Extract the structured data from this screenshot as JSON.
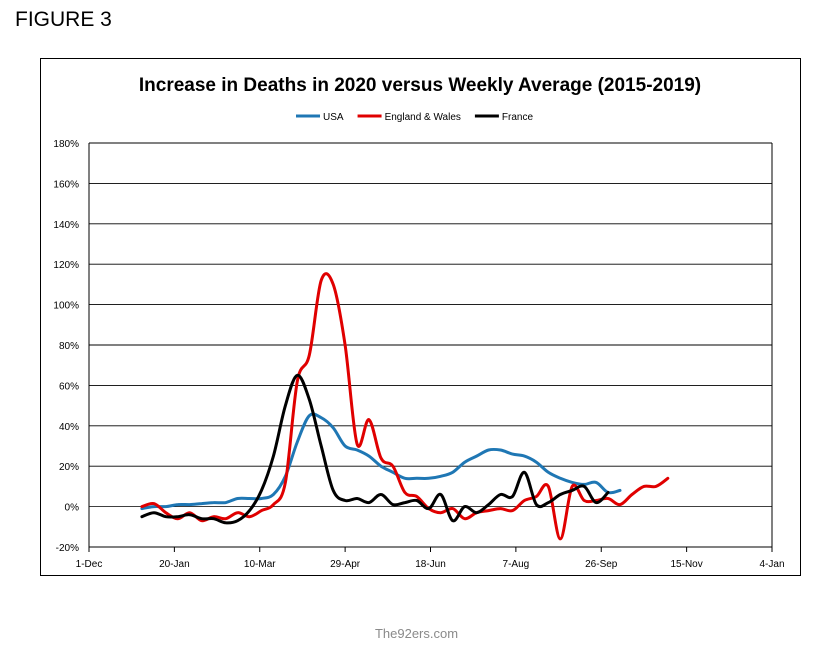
{
  "figure_label": "FIGURE 3",
  "footer": "The92ers.com",
  "chart_data": {
    "type": "line",
    "title": "Increase in Deaths in 2020 versus Weekly Average (2015-2019)",
    "xlabel": "",
    "ylabel": "",
    "legend_position": "top-center",
    "grid": true,
    "x_ticks": [
      "1-Dec",
      "20-Jan",
      "10-Mar",
      "29-Apr",
      "18-Jun",
      "7-Aug",
      "26-Sep",
      "15-Nov",
      "4-Jan"
    ],
    "xlim": [
      "2019-12-01",
      "2021-01-04"
    ],
    "y_ticks": [
      "-20%",
      "0%",
      "20%",
      "40%",
      "60%",
      "80%",
      "100%",
      "120%",
      "140%",
      "160%",
      "180%"
    ],
    "ylim": [
      -20,
      180
    ],
    "series": [
      {
        "name": "USA",
        "color": "#1f77b4",
        "points": [
          [
            "2020-01-01",
            -1
          ],
          [
            "2020-01-08",
            0
          ],
          [
            "2020-01-15",
            0
          ],
          [
            "2020-01-22",
            1
          ],
          [
            "2020-01-29",
            1
          ],
          [
            "2020-02-05",
            1.5
          ],
          [
            "2020-02-12",
            2
          ],
          [
            "2020-02-19",
            2
          ],
          [
            "2020-02-26",
            4
          ],
          [
            "2020-03-04",
            4
          ],
          [
            "2020-03-11",
            4
          ],
          [
            "2020-03-18",
            6
          ],
          [
            "2020-03-25",
            15
          ],
          [
            "2020-04-01",
            32
          ],
          [
            "2020-04-08",
            45
          ],
          [
            "2020-04-15",
            44
          ],
          [
            "2020-04-22",
            39
          ],
          [
            "2020-04-29",
            30
          ],
          [
            "2020-05-06",
            28
          ],
          [
            "2020-05-13",
            25
          ],
          [
            "2020-05-20",
            20
          ],
          [
            "2020-05-27",
            17
          ],
          [
            "2020-06-03",
            14
          ],
          [
            "2020-06-10",
            14
          ],
          [
            "2020-06-17",
            14
          ],
          [
            "2020-06-24",
            15
          ],
          [
            "2020-07-01",
            17
          ],
          [
            "2020-07-08",
            22
          ],
          [
            "2020-07-15",
            25
          ],
          [
            "2020-07-22",
            28
          ],
          [
            "2020-07-29",
            28
          ],
          [
            "2020-08-05",
            26
          ],
          [
            "2020-08-12",
            25
          ],
          [
            "2020-08-19",
            22
          ],
          [
            "2020-08-26",
            17
          ],
          [
            "2020-09-02",
            14
          ],
          [
            "2020-09-09",
            12
          ],
          [
            "2020-09-16",
            11
          ],
          [
            "2020-09-23",
            12
          ],
          [
            "2020-09-30",
            7
          ],
          [
            "2020-10-07",
            8
          ]
        ]
      },
      {
        "name": "England & Wales",
        "color": "#e00000",
        "points": [
          [
            "2020-01-01",
            0
          ],
          [
            "2020-01-08",
            1.5
          ],
          [
            "2020-01-15",
            -3
          ],
          [
            "2020-01-22",
            -6
          ],
          [
            "2020-01-29",
            -3
          ],
          [
            "2020-02-05",
            -7
          ],
          [
            "2020-02-12",
            -5
          ],
          [
            "2020-02-19",
            -6
          ],
          [
            "2020-02-26",
            -3
          ],
          [
            "2020-03-04",
            -5
          ],
          [
            "2020-03-11",
            -2
          ],
          [
            "2020-03-18",
            1
          ],
          [
            "2020-03-25",
            12
          ],
          [
            "2020-04-01",
            62
          ],
          [
            "2020-04-08",
            75
          ],
          [
            "2020-04-15",
            112
          ],
          [
            "2020-04-22",
            110
          ],
          [
            "2020-04-29",
            80
          ],
          [
            "2020-05-06",
            31
          ],
          [
            "2020-05-13",
            43
          ],
          [
            "2020-05-20",
            24
          ],
          [
            "2020-05-27",
            20
          ],
          [
            "2020-06-03",
            7
          ],
          [
            "2020-06-10",
            5
          ],
          [
            "2020-06-17",
            -1
          ],
          [
            "2020-06-24",
            -3
          ],
          [
            "2020-07-01",
            -1
          ],
          [
            "2020-07-08",
            -6
          ],
          [
            "2020-07-15",
            -3
          ],
          [
            "2020-07-22",
            -2
          ],
          [
            "2020-07-29",
            -1
          ],
          [
            "2020-08-05",
            -2
          ],
          [
            "2020-08-12",
            3
          ],
          [
            "2020-08-19",
            5
          ],
          [
            "2020-08-26",
            10
          ],
          [
            "2020-09-02",
            -16
          ],
          [
            "2020-09-09",
            10
          ],
          [
            "2020-09-16",
            3
          ],
          [
            "2020-09-23",
            3
          ],
          [
            "2020-09-30",
            4
          ],
          [
            "2020-10-07",
            1
          ],
          [
            "2020-10-14",
            6
          ],
          [
            "2020-10-21",
            10
          ],
          [
            "2020-10-28",
            10
          ],
          [
            "2020-11-04",
            14
          ]
        ]
      },
      {
        "name": "France",
        "color": "#000000",
        "points": [
          [
            "2020-01-01",
            -5
          ],
          [
            "2020-01-08",
            -3
          ],
          [
            "2020-01-15",
            -5
          ],
          [
            "2020-01-22",
            -5
          ],
          [
            "2020-01-29",
            -4
          ],
          [
            "2020-02-05",
            -6
          ],
          [
            "2020-02-12",
            -6
          ],
          [
            "2020-02-19",
            -8
          ],
          [
            "2020-02-26",
            -7
          ],
          [
            "2020-03-04",
            -2
          ],
          [
            "2020-03-11",
            8
          ],
          [
            "2020-03-18",
            25
          ],
          [
            "2020-03-25",
            50
          ],
          [
            "2020-04-01",
            65
          ],
          [
            "2020-04-08",
            53
          ],
          [
            "2020-04-15",
            30
          ],
          [
            "2020-04-22",
            8
          ],
          [
            "2020-04-29",
            3
          ],
          [
            "2020-05-06",
            4
          ],
          [
            "2020-05-13",
            2
          ],
          [
            "2020-05-20",
            6
          ],
          [
            "2020-05-27",
            1
          ],
          [
            "2020-06-03",
            2
          ],
          [
            "2020-06-10",
            3
          ],
          [
            "2020-06-17",
            -1
          ],
          [
            "2020-06-24",
            6
          ],
          [
            "2020-07-01",
            -7
          ],
          [
            "2020-07-08",
            0
          ],
          [
            "2020-07-15",
            -3
          ],
          [
            "2020-07-22",
            1
          ],
          [
            "2020-07-29",
            6
          ],
          [
            "2020-08-05",
            5
          ],
          [
            "2020-08-12",
            17
          ],
          [
            "2020-08-19",
            1
          ],
          [
            "2020-08-26",
            2
          ],
          [
            "2020-09-02",
            6
          ],
          [
            "2020-09-09",
            8
          ],
          [
            "2020-09-16",
            10
          ],
          [
            "2020-09-23",
            2
          ],
          [
            "2020-09-30",
            7
          ]
        ]
      }
    ]
  }
}
